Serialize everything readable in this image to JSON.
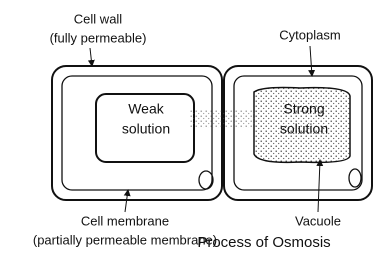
{
  "labels": {
    "cell_wall": {
      "title": "Cell wall",
      "note": "(fully permeable)"
    },
    "cytoplasm": "Cytoplasm",
    "weak_solution": [
      "Weak",
      "solution"
    ],
    "strong_solution": [
      "Strong",
      "solution"
    ],
    "cell_membrane": {
      "title": "Cell membrane",
      "note": "(partially permeable membrane)"
    },
    "vacuole": "Vacuole"
  },
  "caption": "Process of Osmosis"
}
